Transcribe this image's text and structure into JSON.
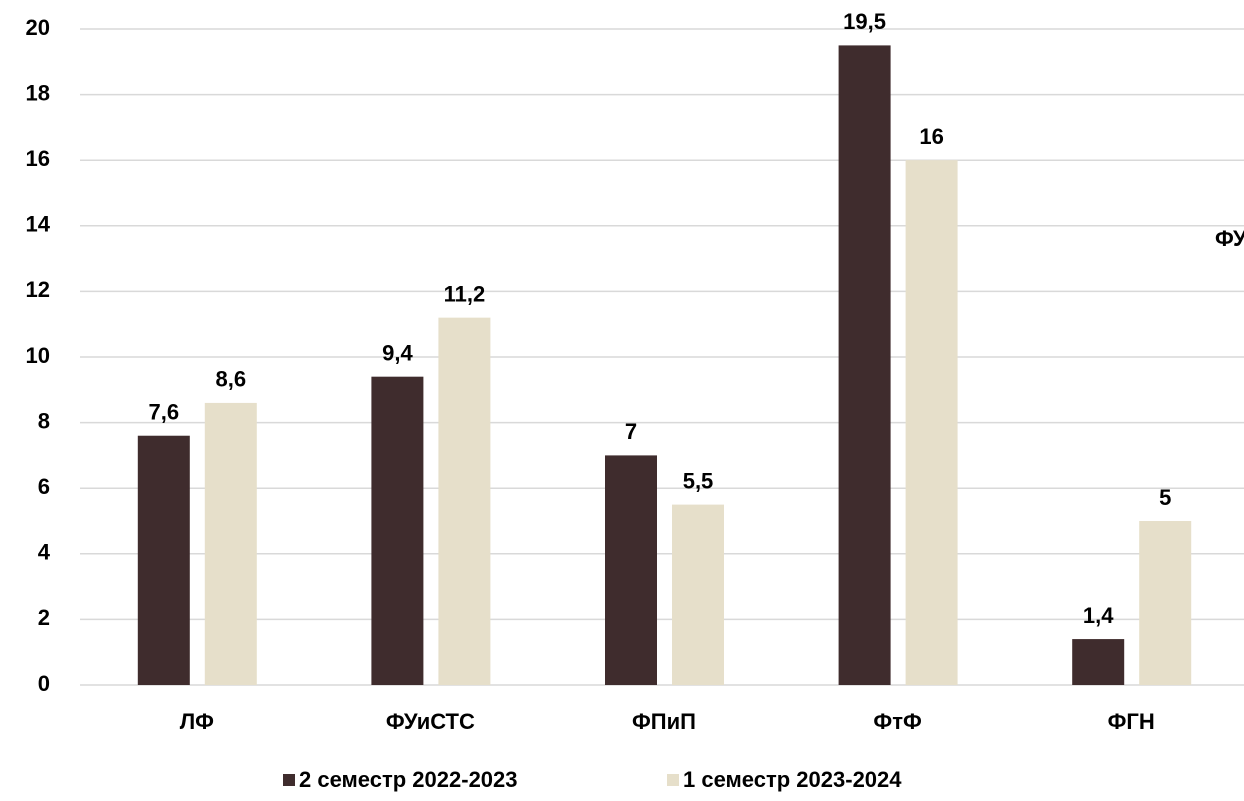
{
  "chart_data": {
    "type": "bar",
    "categories": [
      "ЛФ",
      "ФУиСТС",
      "ФПиП",
      "ФтФ",
      "ФГН"
    ],
    "series": [
      {
        "name": "2 семестр 2022-2023",
        "color": "#3f2c2d",
        "values": [
          7.6,
          9.4,
          7,
          19.5,
          1.4
        ],
        "value_labels": [
          "7,6",
          "9,4",
          "7",
          "19,5",
          "1,4"
        ]
      },
      {
        "name": "1 семестр 2023-2024",
        "color": "#e6dfca",
        "values": [
          8.6,
          11.2,
          5.5,
          16,
          5
        ],
        "value_labels": [
          "8,6",
          "11,2",
          "5,5",
          "16",
          "5"
        ]
      }
    ],
    "ylim": [
      0,
      20
    ],
    "yticks": [
      0,
      2,
      4,
      6,
      8,
      10,
      12,
      14,
      16,
      18,
      20
    ],
    "grid": true,
    "annotation": "ФУ",
    "legend": "bottom"
  }
}
